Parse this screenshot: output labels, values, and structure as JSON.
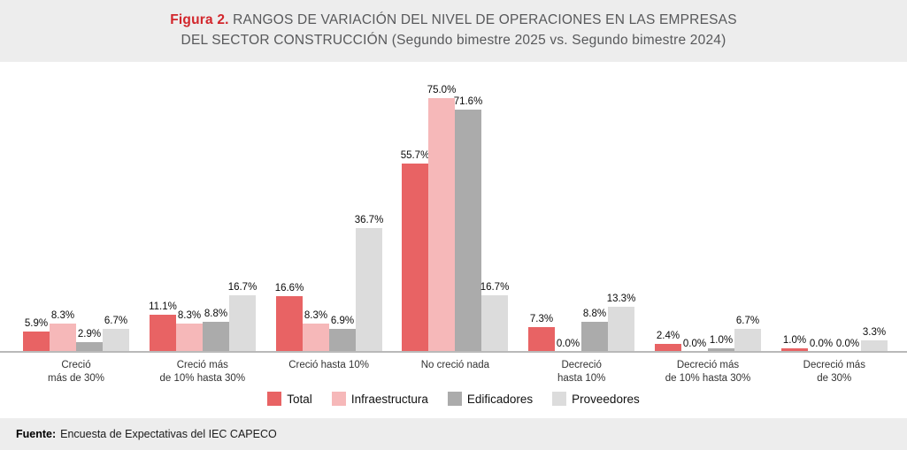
{
  "header": {
    "figure_label": "Figura 2.",
    "title_line1": " RANGOS DE VARIACIÓN DEL NIVEL DE OPERACIONES EN LAS EMPRESAS",
    "title_line2": "DEL SECTOR CONSTRUCCIÓN (Segundo bimestre 2025 vs. Segundo bimestre 2024)"
  },
  "chart_data": {
    "type": "bar",
    "title": "Figura 2. RANGOS DE VARIACIÓN DEL NIVEL DE OPERACIONES EN LAS EMPRESAS DEL SECTOR CONSTRUCCIÓN (Segundo bimestre 2025 vs. Segundo bimestre 2024)",
    "categories": [
      [
        "Creció",
        "más de 30%"
      ],
      [
        "Creció más",
        "de 10% hasta 30%"
      ],
      [
        "Creció hasta 10%"
      ],
      [
        "No creció nada"
      ],
      [
        "Decreció",
        "hasta 10%"
      ],
      [
        "Decreció más",
        "de 10% hasta 30%"
      ],
      [
        "Decreció más",
        "de 30%"
      ]
    ],
    "series": [
      {
        "name": "Total",
        "color": "#E86364",
        "values": [
          5.9,
          11.1,
          16.6,
          55.7,
          7.3,
          2.4,
          1.0
        ]
      },
      {
        "name": "Infraestructura",
        "color": "#F6B8B9",
        "values": [
          8.3,
          8.3,
          8.3,
          75.0,
          0.0,
          0.0,
          0.0
        ]
      },
      {
        "name": "Edificadores",
        "color": "#ABABAB",
        "values": [
          2.9,
          8.8,
          6.9,
          71.6,
          8.8,
          1.0,
          0.0
        ]
      },
      {
        "name": "Proveedores",
        "color": "#DCDCDC",
        "values": [
          6.7,
          16.7,
          36.7,
          16.7,
          13.3,
          6.7,
          3.3
        ]
      }
    ],
    "value_suffix": "%",
    "value_decimals": 1,
    "ylim": [
      0,
      80
    ],
    "gridlines": false,
    "y_axis_visible": false,
    "legend_position": "bottom",
    "accent_color": "#D2262C"
  },
  "footer": {
    "source_label": "Fuente:",
    "source_text": "Encuesta de Expectativas del IEC CAPECO"
  }
}
